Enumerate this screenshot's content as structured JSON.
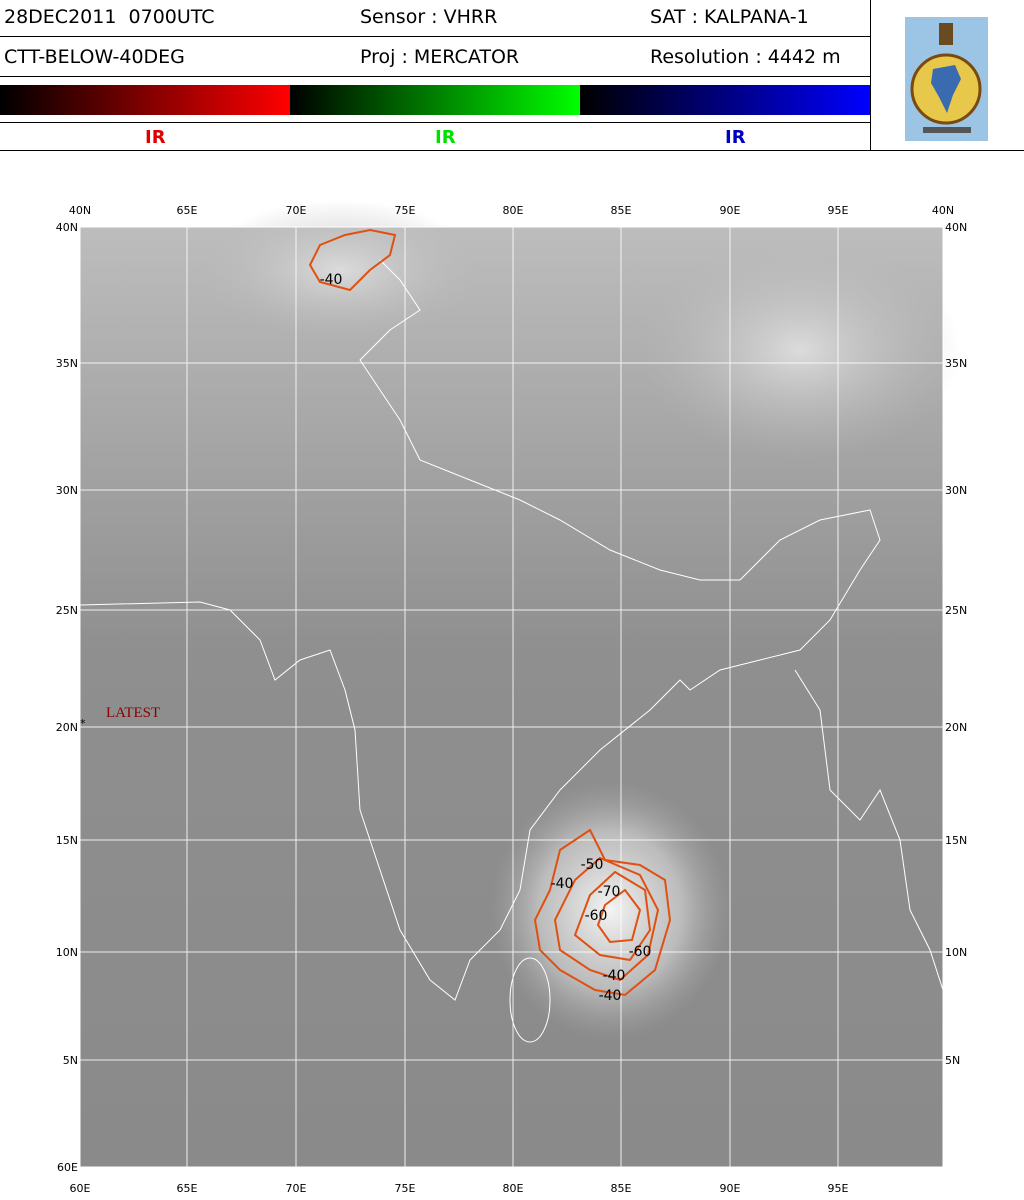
{
  "header": {
    "date": "28DEC2011  0700UTC",
    "sensor": "Sensor : VHRR",
    "satellite": "SAT : KALPANA-1",
    "product": "CTT-BELOW-40DEG",
    "projection": "Proj : MERCATOR",
    "resolution": "Resolution : 4442 m",
    "color_bar_labels": [
      "IR",
      "IR",
      "IR"
    ]
  },
  "map": {
    "top_labels": [
      "40N",
      "65E",
      "70E",
      "75E",
      "80E",
      "85E",
      "90E",
      "95E",
      "40N"
    ],
    "bottom_labels": [
      "60E",
      "65E",
      "70E",
      "75E",
      "80E",
      "85E",
      "90E",
      "95E"
    ],
    "left_labels": [
      "40N",
      "35N",
      "30N",
      "25N",
      "20N",
      "15N",
      "10N",
      "5N",
      "60E"
    ],
    "right_labels": [
      "40N",
      "35N",
      "30N",
      "25N",
      "20N",
      "15N",
      "10N",
      "5N"
    ],
    "annotation": "LATEST",
    "marker": "*",
    "contour_labels": [
      "-40",
      "-50",
      "-40",
      "-70",
      "-60",
      "-60",
      "-40",
      "-40"
    ]
  }
}
